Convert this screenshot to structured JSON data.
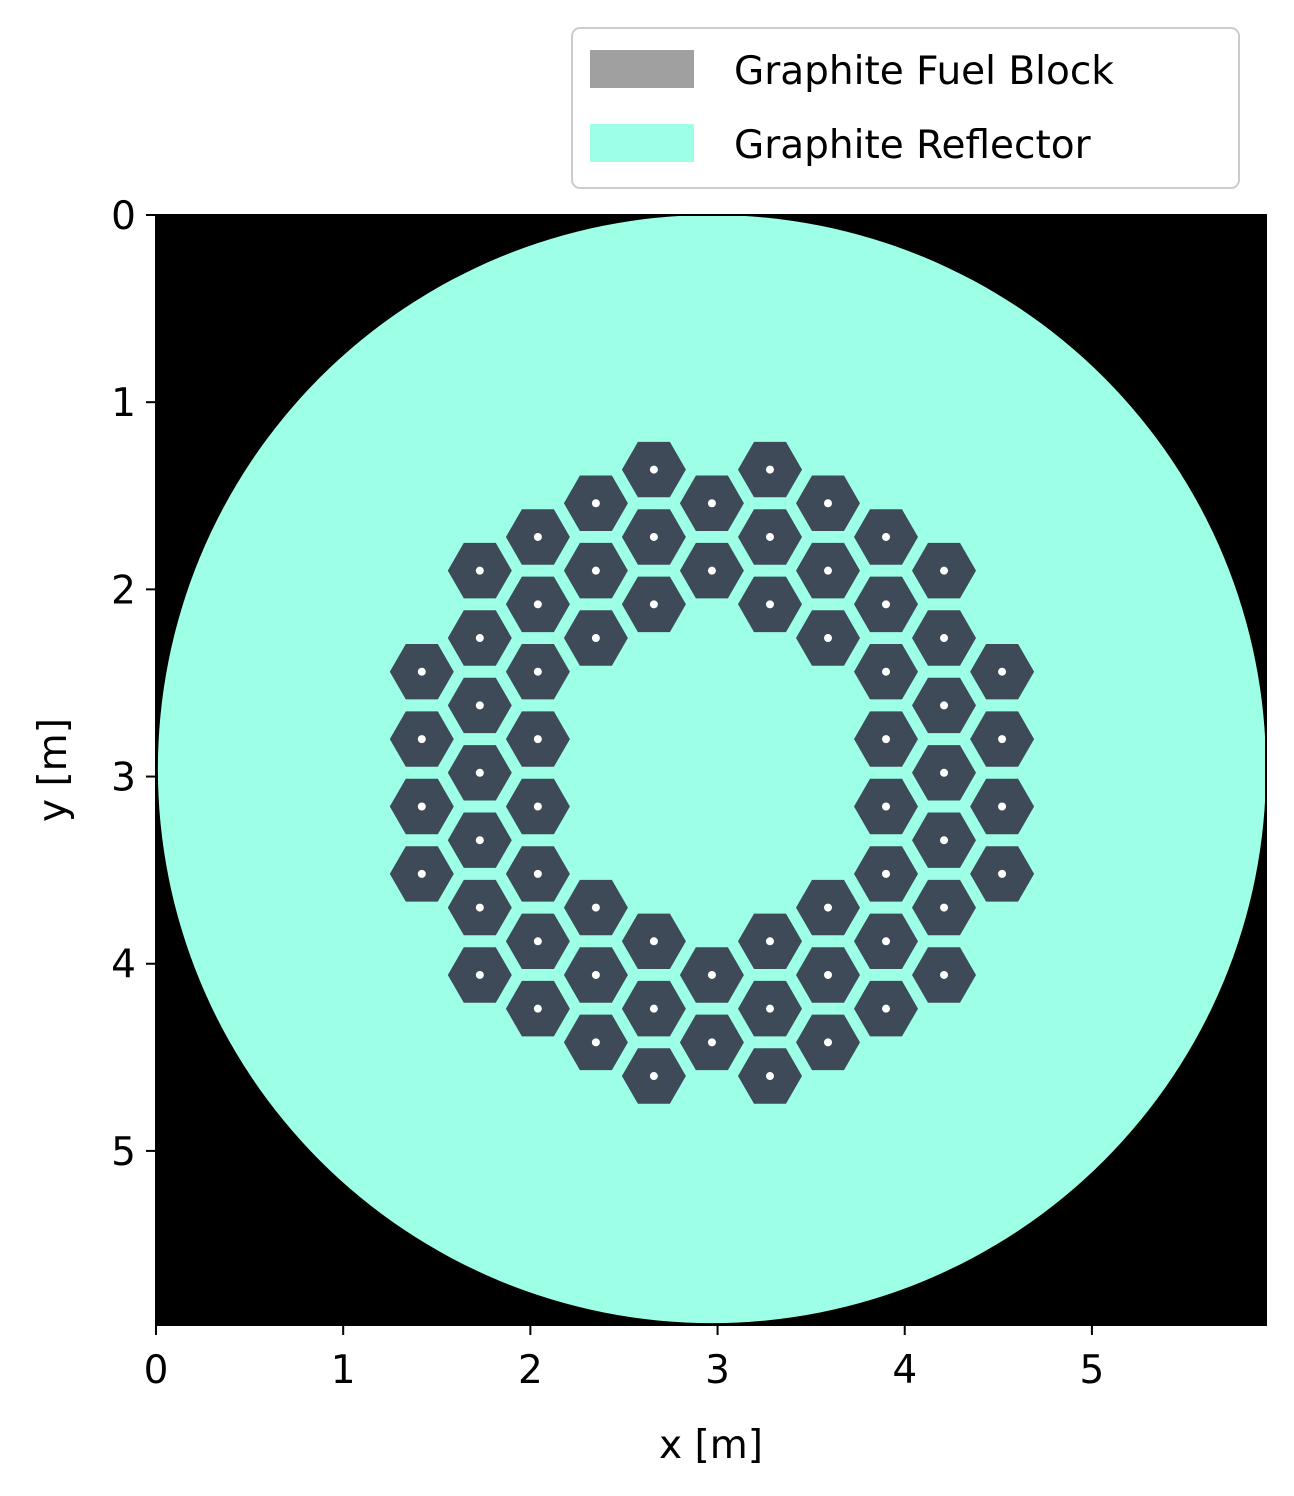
{
  "chart_data": {
    "type": "heatmap",
    "xlabel": "x [m]",
    "ylabel": "y [m]",
    "xlim": [
      0,
      5.93
    ],
    "ylim": [
      0,
      5.93
    ],
    "y_axis_inverted": true,
    "x_ticks": [
      "0",
      "1",
      "2",
      "3",
      "4",
      "5"
    ],
    "y_ticks": [
      "0",
      "1",
      "2",
      "3",
      "4",
      "5"
    ],
    "background_color": "#000000",
    "legend_placement": "above top-right",
    "legend": [
      {
        "label": "Graphite Fuel Block",
        "color": "#a0a0a0"
      },
      {
        "label": "Graphite Reflector",
        "color": "#9dffe6"
      }
    ],
    "regions": {
      "reflector": {
        "material": "Graphite Reflector",
        "shape": "circle",
        "center": [
          2.97,
          2.96
        ],
        "radius": 2.96,
        "color": "#9dffe6"
      },
      "fuel_block_render_color": "#3e4a58"
    },
    "fuel_block_pitch": 0.31,
    "fuel_blocks": [
      [
        2.66,
        1.36
      ],
      [
        3.28,
        1.36
      ],
      [
        2.35,
        1.54
      ],
      [
        2.97,
        1.54
      ],
      [
        3.59,
        1.54
      ],
      [
        2.04,
        1.72
      ],
      [
        2.66,
        1.72
      ],
      [
        3.28,
        1.72
      ],
      [
        3.9,
        1.72
      ],
      [
        1.73,
        1.9
      ],
      [
        2.35,
        1.9
      ],
      [
        2.97,
        1.9
      ],
      [
        3.59,
        1.9
      ],
      [
        4.21,
        1.9
      ],
      [
        2.04,
        2.08
      ],
      [
        2.66,
        2.08
      ],
      [
        3.28,
        2.08
      ],
      [
        3.9,
        2.08
      ],
      [
        1.73,
        2.26
      ],
      [
        2.35,
        2.26
      ],
      [
        3.59,
        2.26
      ],
      [
        4.21,
        2.26
      ],
      [
        1.42,
        2.44
      ],
      [
        2.04,
        2.44
      ],
      [
        3.9,
        2.44
      ],
      [
        4.52,
        2.44
      ],
      [
        1.73,
        2.62
      ],
      [
        4.21,
        2.62
      ],
      [
        1.42,
        2.8
      ],
      [
        2.04,
        2.8
      ],
      [
        3.9,
        2.8
      ],
      [
        4.52,
        2.8
      ],
      [
        1.73,
        2.98
      ],
      [
        4.21,
        2.98
      ],
      [
        1.42,
        3.16
      ],
      [
        2.04,
        3.16
      ],
      [
        3.9,
        3.16
      ],
      [
        4.52,
        3.16
      ],
      [
        1.73,
        3.34
      ],
      [
        4.21,
        3.34
      ],
      [
        1.42,
        3.52
      ],
      [
        2.04,
        3.52
      ],
      [
        3.9,
        3.52
      ],
      [
        4.52,
        3.52
      ],
      [
        1.73,
        3.7
      ],
      [
        2.35,
        3.7
      ],
      [
        3.59,
        3.7
      ],
      [
        4.21,
        3.7
      ],
      [
        2.04,
        3.88
      ],
      [
        2.66,
        3.88
      ],
      [
        3.28,
        3.88
      ],
      [
        3.9,
        3.88
      ],
      [
        1.73,
        4.06
      ],
      [
        2.35,
        4.06
      ],
      [
        2.97,
        4.06
      ],
      [
        3.59,
        4.06
      ],
      [
        4.21,
        4.06
      ],
      [
        2.04,
        4.24
      ],
      [
        2.66,
        4.24
      ],
      [
        3.28,
        4.24
      ],
      [
        3.9,
        4.24
      ],
      [
        2.35,
        4.42
      ],
      [
        2.97,
        4.42
      ],
      [
        3.59,
        4.42
      ],
      [
        2.66,
        4.6
      ],
      [
        3.28,
        4.6
      ]
    ]
  }
}
